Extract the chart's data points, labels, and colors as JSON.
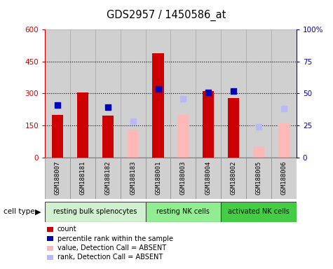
{
  "title": "GDS2957 / 1450586_at",
  "samples": [
    "GSM188007",
    "GSM188181",
    "GSM188182",
    "GSM188183",
    "GSM188001",
    "GSM188003",
    "GSM188004",
    "GSM188002",
    "GSM188005",
    "GSM188006"
  ],
  "cell_types": [
    {
      "label": "resting bulk splenocytes",
      "start": 0,
      "end": 4,
      "color": "#d0f0d0"
    },
    {
      "label": "resting NK cells",
      "start": 4,
      "end": 7,
      "color": "#90ee90"
    },
    {
      "label": "activated NK cells",
      "start": 7,
      "end": 10,
      "color": "#44cc44"
    }
  ],
  "count_values": [
    200,
    305,
    195,
    null,
    490,
    null,
    310,
    280,
    null,
    null
  ],
  "percentile_values": [
    245,
    null,
    235,
    null,
    320,
    null,
    305,
    310,
    null,
    null
  ],
  "absent_value_values": [
    null,
    null,
    null,
    130,
    null,
    200,
    null,
    null,
    50,
    160
  ],
  "absent_rank_values": [
    null,
    null,
    null,
    170,
    null,
    275,
    null,
    null,
    145,
    230
  ],
  "ylim_left": [
    0,
    600
  ],
  "ylim_right": [
    0,
    100
  ],
  "yticks_left": [
    0,
    150,
    300,
    450,
    600
  ],
  "yticks_right": [
    0,
    25,
    50,
    75,
    100
  ],
  "ytick_labels_right": [
    "0",
    "25",
    "50",
    "75",
    "100%"
  ],
  "count_color": "#cc0000",
  "percentile_color": "#0000bb",
  "absent_value_color": "#ffb8b8",
  "absent_rank_color": "#b8b8ff",
  "bg_sample": "#d0d0d0",
  "legend_items": [
    {
      "label": "count",
      "color": "#cc0000",
      "type": "bar"
    },
    {
      "label": "percentile rank within the sample",
      "color": "#0000bb",
      "type": "square"
    },
    {
      "label": "value, Detection Call = ABSENT",
      "color": "#ffb8b8",
      "type": "bar"
    },
    {
      "label": "rank, Detection Call = ABSENT",
      "color": "#b8b8ff",
      "type": "square"
    }
  ]
}
